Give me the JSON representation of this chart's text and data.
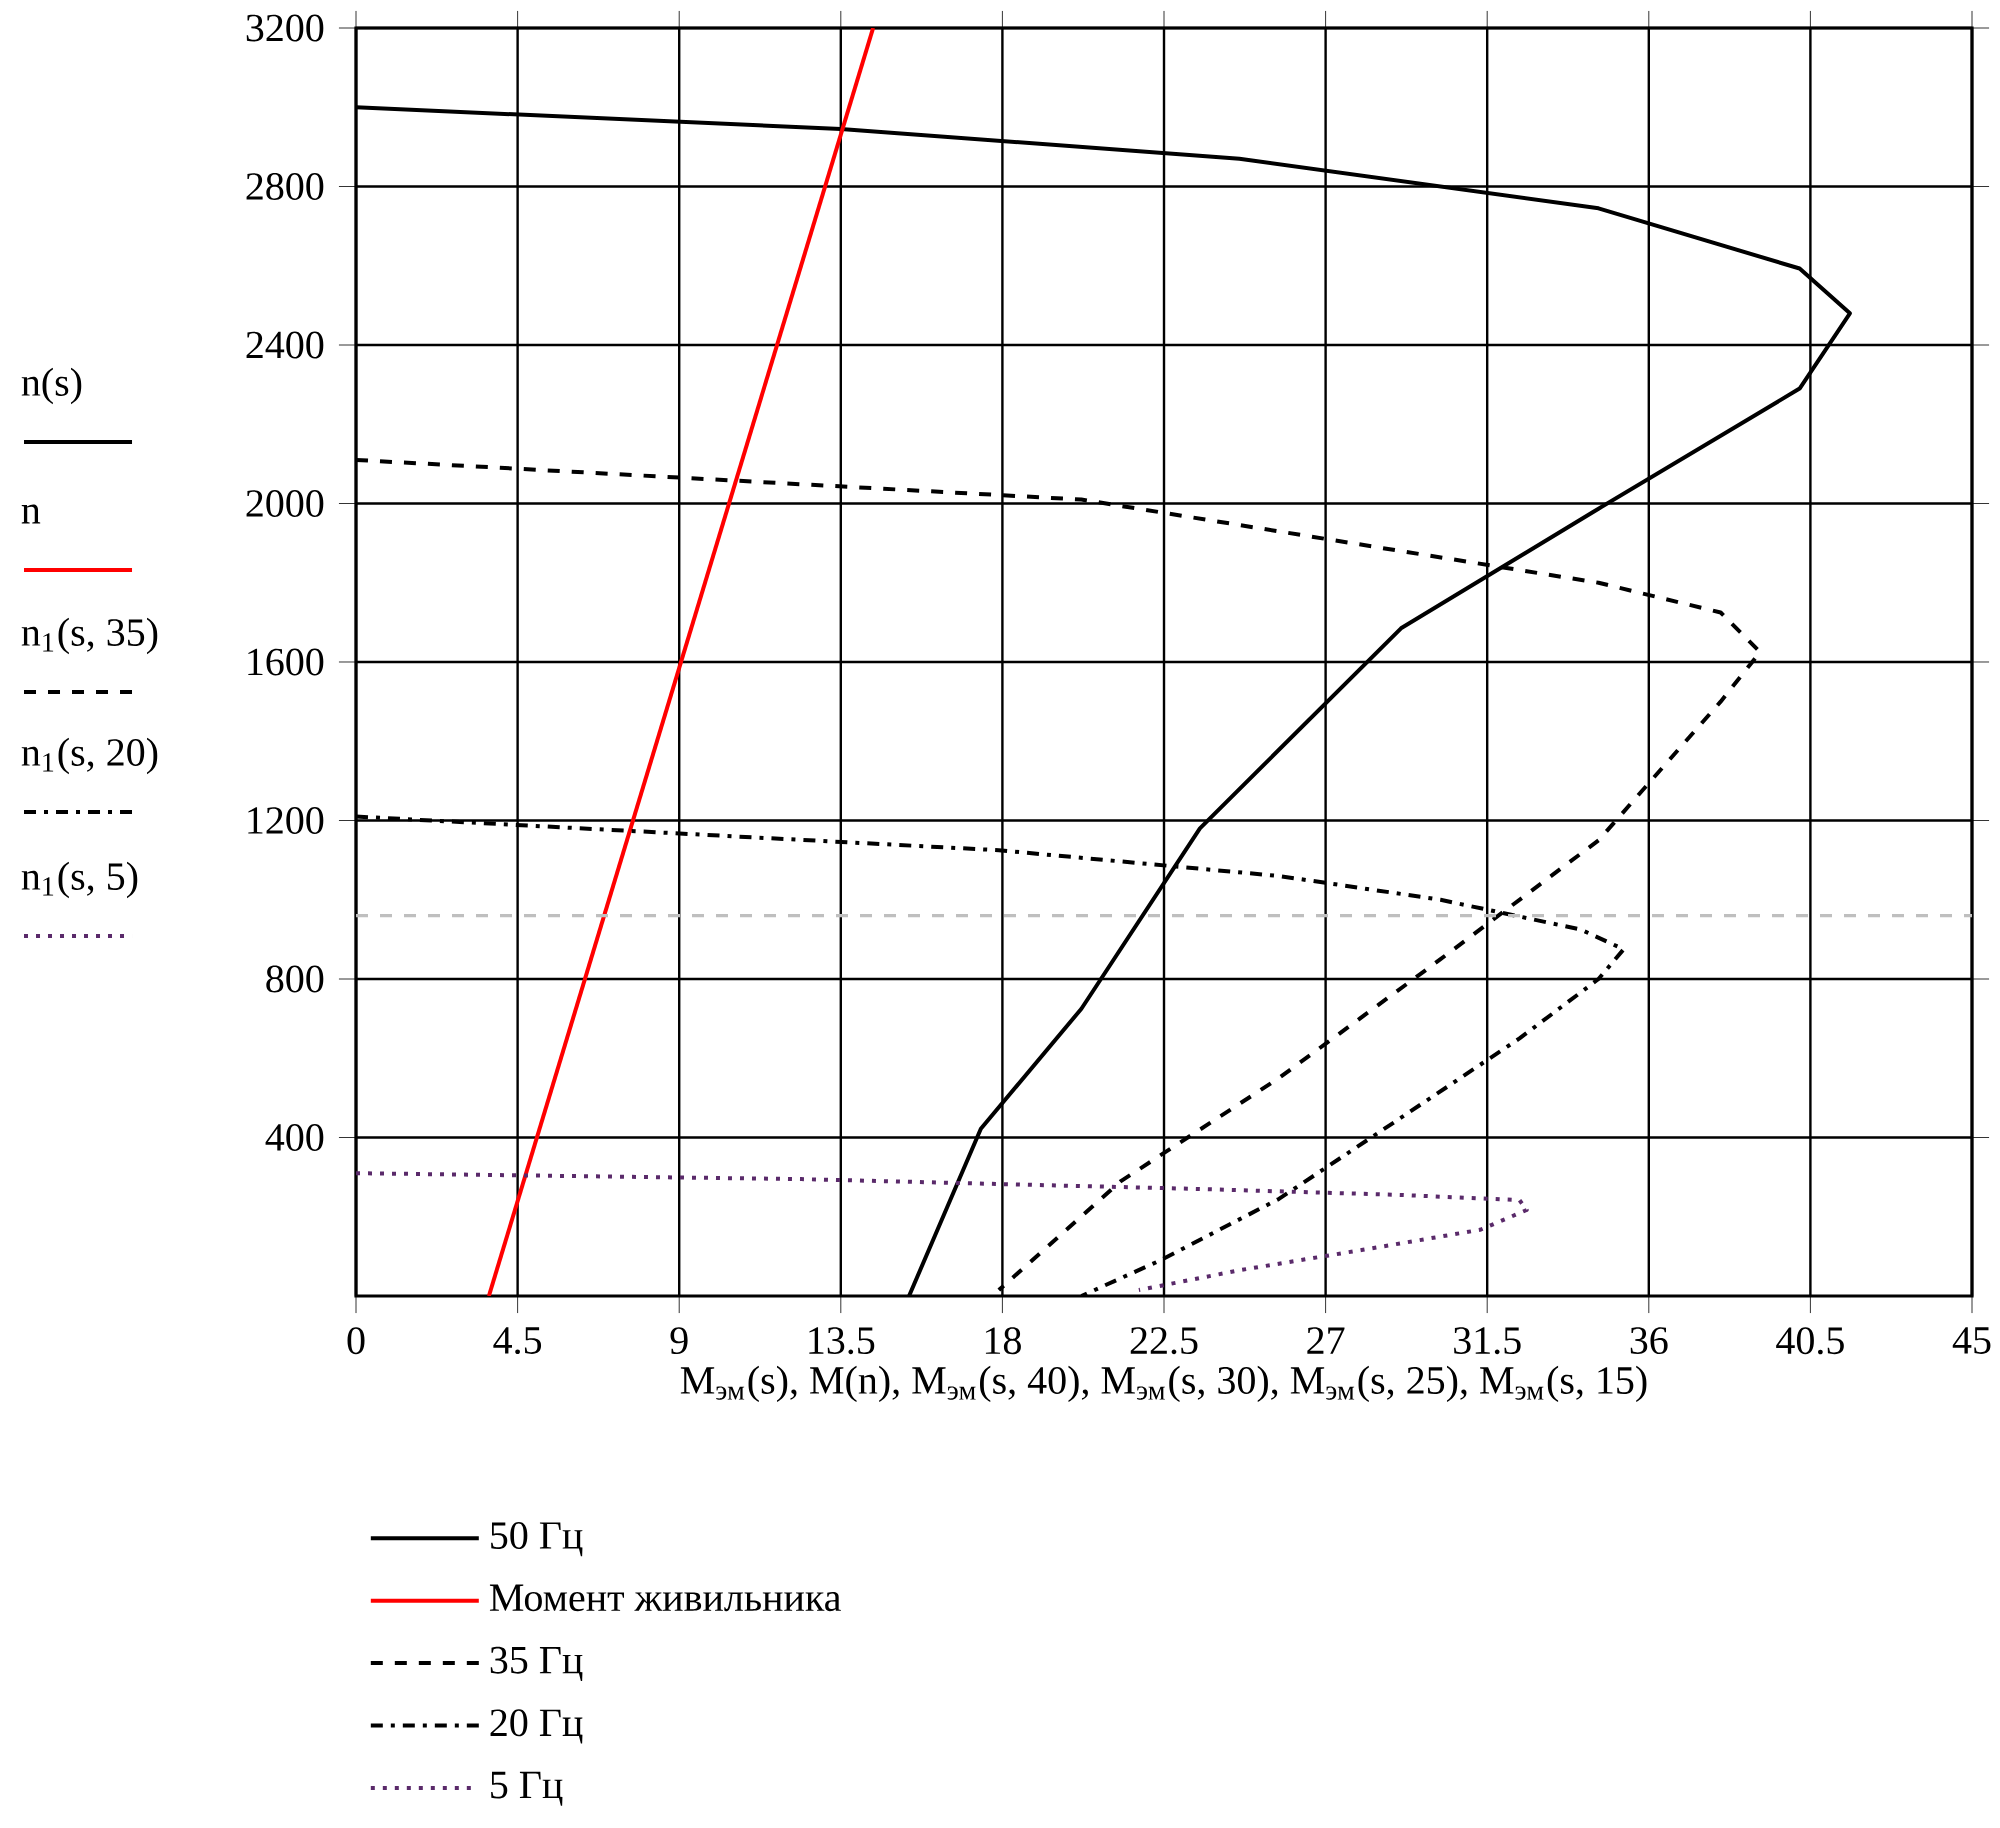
{
  "chart_data": {
    "type": "line",
    "xlabel": "M$_{эм}$(s), M(n), M$_{эм}$(s, 40), M$_{эм}$(s, 30), M$_{эм}$(s, 25), M$_{эм}$(s, 15)",
    "annotations": [
      "n(s)",
      "n",
      "n$_{1}$(s, 35)",
      "n$_{1}$(s, 20)",
      "n$_{1}$(s, 5)"
    ],
    "xlim": [
      0,
      45
    ],
    "ylim": [
      0,
      3200
    ],
    "xticks": [
      0,
      4.5,
      9,
      13.5,
      18,
      22.5,
      27,
      31.5,
      36,
      40.5,
      45
    ],
    "yticks": [
      400,
      800,
      1200,
      1600,
      2000,
      2400,
      2800,
      3200
    ],
    "grid": true,
    "legend": "bottom left",
    "marker": "none",
    "ref_lines": [
      {
        "axis": "y",
        "value": 960,
        "color": "#bfbfbf",
        "line_style": "dashed"
      }
    ],
    "series": [
      {
        "name": "50 Гц",
        "color": "#000000",
        "line_style": "solid",
        "x": [
          0,
          13.5,
          24.6,
          34.6,
          40.2,
          41.6,
          40.2,
          34.6,
          29.1,
          23.5,
          20.2,
          17.4,
          15.4
        ],
        "values": [
          3000,
          2945,
          2870,
          2745,
          2593,
          2480,
          2290,
          1987,
          1685,
          1180,
          725,
          422,
          0
        ]
      },
      {
        "name": "Момент живильника",
        "color": "#ff0000",
        "line_style": "solid",
        "x": [
          3.7,
          14.4
        ],
        "values": [
          0,
          3200
        ]
      },
      {
        "name": "35 Гц",
        "color": "#000000",
        "line_style": "dashed",
        "x": [
          0,
          20.2,
          29.1,
          34.6,
          38,
          39.1,
          38,
          34.6,
          30.2,
          25.7,
          21.3,
          17.9
        ],
        "values": [
          2110,
          2010,
          1880,
          1800,
          1725,
          1625,
          1500,
          1150,
          850,
          550,
          290,
          15
        ]
      },
      {
        "name": "20 Гц",
        "color": "#000000",
        "line_style": "dashdot",
        "x": [
          0,
          17.9,
          25.7,
          30.2,
          34.1,
          35.3,
          34.6,
          32.4,
          29.1,
          25.7,
          22.4,
          20.2
        ],
        "values": [
          1210,
          1125,
          1060,
          1000,
          925,
          875,
          800,
          650,
          450,
          245,
          90,
          0
        ]
      },
      {
        "name": "5 Гц",
        "color": "#5a2a6a",
        "line_style": "dotted",
        "x": [
          0,
          12.4,
          23.5,
          29.1,
          32.4,
          32.6,
          31.3,
          28,
          24.6,
          21.8
        ],
        "values": [
          310,
          295,
          270,
          255,
          242,
          217,
          167,
          116,
          65,
          15
        ]
      }
    ]
  }
}
